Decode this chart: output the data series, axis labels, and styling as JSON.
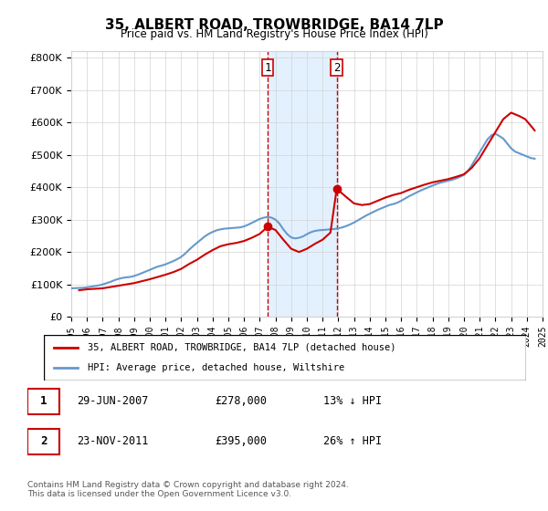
{
  "title": "35, ALBERT ROAD, TROWBRIDGE, BA14 7LP",
  "subtitle": "Price paid vs. HM Land Registry's House Price Index (HPI)",
  "legend_line1": "35, ALBERT ROAD, TROWBRIDGE, BA14 7LP (detached house)",
  "legend_line2": "HPI: Average price, detached house, Wiltshire",
  "transaction1_label": "1",
  "transaction1_date": "29-JUN-2007",
  "transaction1_price": "£278,000",
  "transaction1_hpi": "13% ↓ HPI",
  "transaction2_label": "2",
  "transaction2_date": "23-NOV-2011",
  "transaction2_price": "£395,000",
  "transaction2_hpi": "26% ↑ HPI",
  "footer": "Contains HM Land Registry data © Crown copyright and database right 2024.\nThis data is licensed under the Open Government Licence v3.0.",
  "hpi_color": "#6699cc",
  "price_color": "#cc0000",
  "shaded_color": "#ddeeff",
  "marker1_x": 2007.5,
  "marker2_x": 2011.9,
  "marker1_y": 278000,
  "marker2_y": 395000,
  "ylim": [
    0,
    820000
  ],
  "xlim_start": 1995,
  "xlim_end": 2025,
  "yticks": [
    0,
    100000,
    200000,
    300000,
    400000,
    500000,
    600000,
    700000,
    800000
  ],
  "xticks": [
    1995,
    1996,
    1997,
    1998,
    1999,
    2000,
    2001,
    2002,
    2003,
    2004,
    2005,
    2006,
    2007,
    2008,
    2009,
    2010,
    2011,
    2012,
    2013,
    2014,
    2015,
    2016,
    2017,
    2018,
    2019,
    2020,
    2021,
    2022,
    2023,
    2024,
    2025
  ],
  "hpi_data_x": [
    1995.0,
    1995.25,
    1995.5,
    1995.75,
    1996.0,
    1996.25,
    1996.5,
    1996.75,
    1997.0,
    1997.25,
    1997.5,
    1997.75,
    1998.0,
    1998.25,
    1998.5,
    1998.75,
    1999.0,
    1999.25,
    1999.5,
    1999.75,
    2000.0,
    2000.25,
    2000.5,
    2000.75,
    2001.0,
    2001.25,
    2001.5,
    2001.75,
    2002.0,
    2002.25,
    2002.5,
    2002.75,
    2003.0,
    2003.25,
    2003.5,
    2003.75,
    2004.0,
    2004.25,
    2004.5,
    2004.75,
    2005.0,
    2005.25,
    2005.5,
    2005.75,
    2006.0,
    2006.25,
    2006.5,
    2006.75,
    2007.0,
    2007.25,
    2007.5,
    2007.75,
    2008.0,
    2008.25,
    2008.5,
    2008.75,
    2009.0,
    2009.25,
    2009.5,
    2009.75,
    2010.0,
    2010.25,
    2010.5,
    2010.75,
    2011.0,
    2011.25,
    2011.5,
    2011.75,
    2012.0,
    2012.25,
    2012.5,
    2012.75,
    2013.0,
    2013.25,
    2013.5,
    2013.75,
    2014.0,
    2014.25,
    2014.5,
    2014.75,
    2015.0,
    2015.25,
    2015.5,
    2015.75,
    2016.0,
    2016.25,
    2016.5,
    2016.75,
    2017.0,
    2017.25,
    2017.5,
    2017.75,
    2018.0,
    2018.25,
    2018.5,
    2018.75,
    2019.0,
    2019.25,
    2019.5,
    2019.75,
    2020.0,
    2020.25,
    2020.5,
    2020.75,
    2021.0,
    2021.25,
    2021.5,
    2021.75,
    2022.0,
    2022.25,
    2022.5,
    2022.75,
    2023.0,
    2023.25,
    2023.5,
    2023.75,
    2024.0,
    2024.25,
    2024.5
  ],
  "hpi_data_y": [
    88000,
    88500,
    89000,
    89500,
    91000,
    93000,
    95000,
    97000,
    100000,
    104000,
    108000,
    113000,
    117000,
    120000,
    122000,
    123000,
    126000,
    130000,
    135000,
    140000,
    145000,
    150000,
    155000,
    158000,
    162000,
    167000,
    172000,
    178000,
    185000,
    195000,
    207000,
    218000,
    228000,
    238000,
    248000,
    256000,
    262000,
    267000,
    270000,
    272000,
    273000,
    274000,
    275000,
    276000,
    279000,
    284000,
    290000,
    296000,
    302000,
    306000,
    308000,
    306000,
    300000,
    288000,
    270000,
    255000,
    245000,
    242000,
    244000,
    248000,
    255000,
    261000,
    265000,
    267000,
    268000,
    269000,
    270000,
    271000,
    273000,
    276000,
    280000,
    285000,
    291000,
    298000,
    305000,
    312000,
    318000,
    324000,
    330000,
    335000,
    340000,
    345000,
    348000,
    352000,
    358000,
    365000,
    372000,
    378000,
    384000,
    390000,
    395000,
    400000,
    405000,
    410000,
    414000,
    417000,
    420000,
    423000,
    427000,
    432000,
    438000,
    450000,
    468000,
    488000,
    508000,
    528000,
    548000,
    560000,
    565000,
    558000,
    550000,
    535000,
    520000,
    510000,
    505000,
    500000,
    495000,
    490000,
    488000
  ],
  "price_data_x": [
    1995.5,
    1996.0,
    1997.0,
    1997.5,
    1998.0,
    1998.5,
    1999.0,
    1999.5,
    2000.0,
    2000.5,
    2001.0,
    2001.5,
    2002.0,
    2002.5,
    2003.0,
    2003.5,
    2004.0,
    2004.5,
    2005.0,
    2005.5,
    2006.0,
    2006.5,
    2007.0,
    2007.5,
    2008.0,
    2008.5,
    2009.0,
    2009.5,
    2010.0,
    2010.5,
    2011.0,
    2011.5,
    2011.9,
    2012.5,
    2013.0,
    2013.5,
    2014.0,
    2014.5,
    2015.0,
    2015.5,
    2016.0,
    2016.5,
    2017.0,
    2017.5,
    2018.0,
    2018.5,
    2019.0,
    2019.5,
    2020.0,
    2020.5,
    2021.0,
    2021.5,
    2022.0,
    2022.5,
    2023.0,
    2023.5,
    2023.9,
    2024.25,
    2024.5
  ],
  "price_data_y": [
    82000,
    85000,
    88000,
    92000,
    96000,
    100000,
    104000,
    110000,
    116000,
    123000,
    130000,
    138000,
    148000,
    163000,
    176000,
    192000,
    206000,
    218000,
    224000,
    228000,
    234000,
    244000,
    256000,
    278000,
    268000,
    238000,
    210000,
    200000,
    210000,
    225000,
    238000,
    260000,
    395000,
    370000,
    350000,
    345000,
    348000,
    358000,
    368000,
    376000,
    382000,
    392000,
    400000,
    408000,
    415000,
    420000,
    425000,
    432000,
    440000,
    460000,
    490000,
    530000,
    570000,
    610000,
    630000,
    620000,
    610000,
    590000,
    575000
  ]
}
